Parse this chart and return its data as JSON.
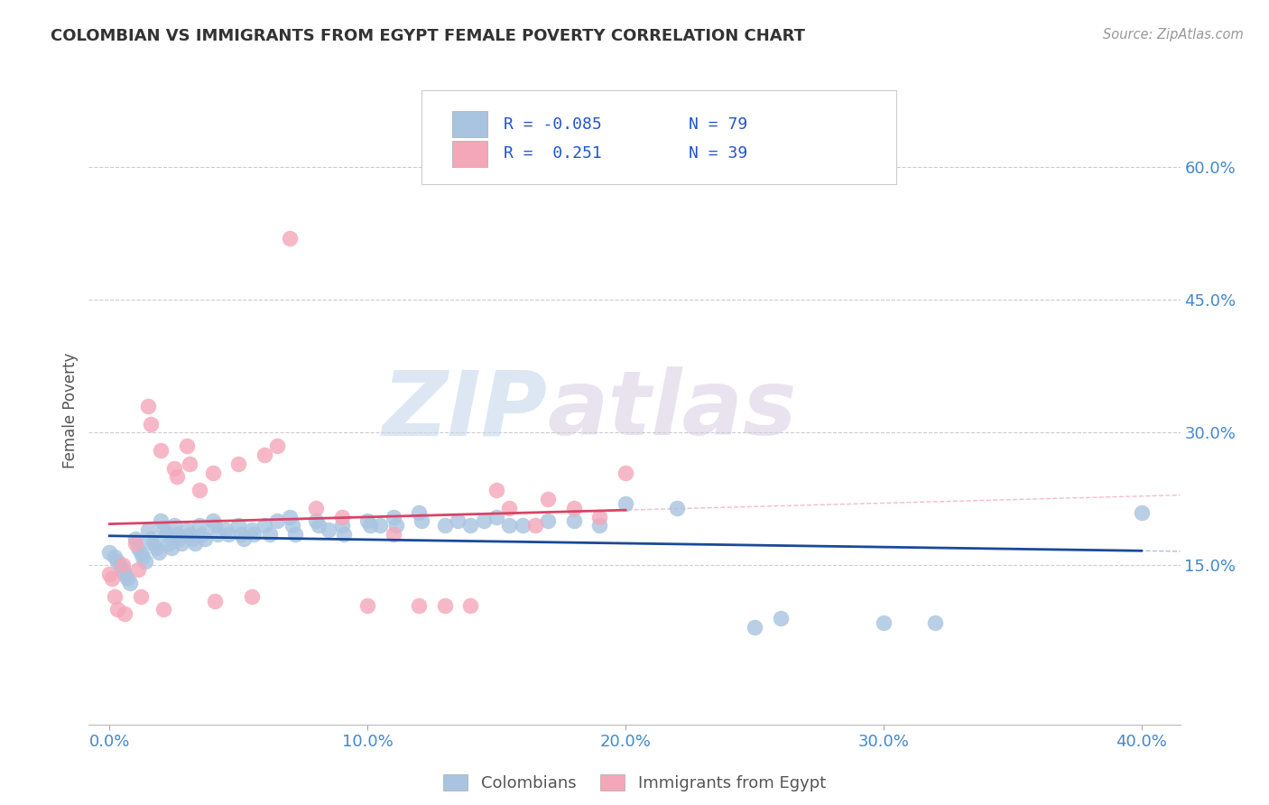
{
  "title": "COLOMBIAN VS IMMIGRANTS FROM EGYPT FEMALE POVERTY CORRELATION CHART",
  "source": "Source: ZipAtlas.com",
  "xlabel_ticks": [
    "0.0%",
    "10.0%",
    "20.0%",
    "30.0%",
    "40.0%"
  ],
  "xlabel_tick_vals": [
    0.0,
    0.1,
    0.2,
    0.3,
    0.4
  ],
  "ylabel_ticks": [
    "15.0%",
    "30.0%",
    "45.0%",
    "60.0%"
  ],
  "ylabel_tick_vals": [
    0.15,
    0.3,
    0.45,
    0.6
  ],
  "xlim": [
    -0.008,
    0.415
  ],
  "ylim": [
    -0.03,
    0.68
  ],
  "colombian_color": "#a8c4e0",
  "egypt_color": "#f4a7b9",
  "colombian_line_color": "#1a4a99",
  "egypt_line_color": "#d94466",
  "legend_label_1": "Colombians",
  "legend_label_2": "Immigrants from Egypt",
  "R1": "-0.085",
  "N1": "79",
  "R2": "0.251",
  "N2": "39",
  "ylabel": "Female Poverty",
  "watermark_zip": "ZIP",
  "watermark_atlas": "atlas",
  "colombians_x": [
    0.0,
    0.002,
    0.003,
    0.004,
    0.005,
    0.006,
    0.007,
    0.008,
    0.01,
    0.011,
    0.012,
    0.013,
    0.014,
    0.015,
    0.016,
    0.017,
    0.018,
    0.019,
    0.02,
    0.021,
    0.022,
    0.023,
    0.024,
    0.025,
    0.026,
    0.027,
    0.028,
    0.03,
    0.031,
    0.032,
    0.033,
    0.035,
    0.036,
    0.037,
    0.04,
    0.041,
    0.042,
    0.045,
    0.046,
    0.05,
    0.051,
    0.052,
    0.055,
    0.056,
    0.06,
    0.062,
    0.065,
    0.07,
    0.071,
    0.072,
    0.08,
    0.081,
    0.085,
    0.09,
    0.091,
    0.1,
    0.101,
    0.105,
    0.11,
    0.111,
    0.12,
    0.121,
    0.13,
    0.135,
    0.14,
    0.145,
    0.15,
    0.155,
    0.16,
    0.17,
    0.18,
    0.19,
    0.2,
    0.22,
    0.25,
    0.26,
    0.3,
    0.32,
    0.4
  ],
  "colombians_y": [
    0.165,
    0.16,
    0.155,
    0.15,
    0.145,
    0.14,
    0.135,
    0.13,
    0.18,
    0.17,
    0.165,
    0.16,
    0.155,
    0.19,
    0.18,
    0.175,
    0.17,
    0.165,
    0.2,
    0.19,
    0.185,
    0.175,
    0.17,
    0.195,
    0.185,
    0.18,
    0.175,
    0.19,
    0.185,
    0.18,
    0.175,
    0.195,
    0.185,
    0.18,
    0.2,
    0.195,
    0.185,
    0.19,
    0.185,
    0.195,
    0.185,
    0.18,
    0.19,
    0.185,
    0.195,
    0.185,
    0.2,
    0.205,
    0.195,
    0.185,
    0.2,
    0.195,
    0.19,
    0.195,
    0.185,
    0.2,
    0.195,
    0.195,
    0.205,
    0.195,
    0.21,
    0.2,
    0.195,
    0.2,
    0.195,
    0.2,
    0.205,
    0.195,
    0.195,
    0.2,
    0.2,
    0.195,
    0.22,
    0.215,
    0.08,
    0.09,
    0.085,
    0.085,
    0.21
  ],
  "egypt_x": [
    0.0,
    0.001,
    0.002,
    0.003,
    0.005,
    0.006,
    0.01,
    0.011,
    0.012,
    0.015,
    0.016,
    0.02,
    0.021,
    0.025,
    0.026,
    0.03,
    0.031,
    0.035,
    0.04,
    0.041,
    0.05,
    0.055,
    0.06,
    0.065,
    0.07,
    0.08,
    0.09,
    0.1,
    0.11,
    0.12,
    0.13,
    0.14,
    0.15,
    0.155,
    0.165,
    0.17,
    0.18,
    0.19,
    0.2
  ],
  "egypt_y": [
    0.14,
    0.135,
    0.115,
    0.1,
    0.15,
    0.095,
    0.175,
    0.145,
    0.115,
    0.33,
    0.31,
    0.28,
    0.1,
    0.26,
    0.25,
    0.285,
    0.265,
    0.235,
    0.255,
    0.11,
    0.265,
    0.115,
    0.275,
    0.285,
    0.52,
    0.215,
    0.205,
    0.105,
    0.185,
    0.105,
    0.105,
    0.105,
    0.235,
    0.215,
    0.195,
    0.225,
    0.215,
    0.205,
    0.255
  ]
}
